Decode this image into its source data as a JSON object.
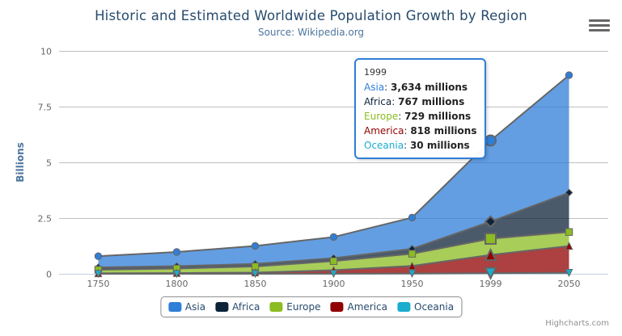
{
  "header": {
    "title": "Historic and Estimated Worldwide Population Growth by Region",
    "subtitle": "Source: Wikipedia.org"
  },
  "chart_data": {
    "type": "area",
    "stacking": "normal",
    "title": "Historic and Estimated Worldwide Population Growth by Region",
    "subtitle": "Source: Wikipedia.org",
    "xlabel": "",
    "ylabel": "Billions",
    "unit": "millions",
    "categories": [
      "1750",
      "1800",
      "1850",
      "1900",
      "1950",
      "1999",
      "2050"
    ],
    "series": [
      {
        "name": "Asia",
        "color": "#2f7ed8",
        "marker": "circle",
        "values": [
          502,
          635,
          809,
          947,
          1402,
          3634,
          5268
        ]
      },
      {
        "name": "Africa",
        "color": "#0d233a",
        "marker": "diamond",
        "values": [
          106,
          107,
          111,
          133,
          221,
          767,
          1766
        ]
      },
      {
        "name": "Europe",
        "color": "#8bbc21",
        "marker": "square",
        "values": [
          163,
          203,
          276,
          408,
          547,
          729,
          628
        ]
      },
      {
        "name": "America",
        "color": "#910000",
        "marker": "triangle",
        "values": [
          18,
          31,
          54,
          156,
          339,
          818,
          1201
        ]
      },
      {
        "name": "Oceania",
        "color": "#1aadce",
        "marker": "triangle-down",
        "values": [
          2,
          2,
          2,
          6,
          13,
          30,
          46
        ]
      }
    ],
    "yticks": [
      0,
      2.5,
      5,
      7.5,
      10
    ],
    "ylim": [
      0,
      10
    ],
    "grid": true,
    "line_color": "#666666",
    "axis_line_color": "#C0D0E0",
    "grid_color": "#C0C0C0",
    "tick_label_color": "#666666",
    "legend_position": "bottom",
    "hover_index": 5
  },
  "tooltip": {
    "header": "1999",
    "rows": [
      {
        "name": "Asia",
        "value": "3,634 millions"
      },
      {
        "name": "Africa",
        "value": "767 millions"
      },
      {
        "name": "Europe",
        "value": "729 millions"
      },
      {
        "name": "America",
        "value": "818 millions"
      },
      {
        "name": "Oceania",
        "value": "30 millions"
      }
    ]
  },
  "icons": {
    "export_menu": "hamburger-menu-icon"
  },
  "credits": {
    "label": "Highcharts.com"
  }
}
